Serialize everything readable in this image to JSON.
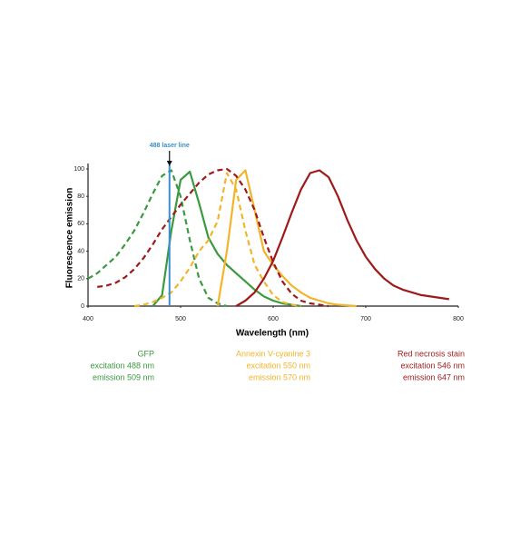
{
  "chart_data": {
    "type": "line",
    "x_label": "Wavelength (nm)",
    "y_label": "Fluorescence emission",
    "x": [
      400,
      410,
      420,
      430,
      440,
      450,
      460,
      470,
      480,
      490,
      500,
      510,
      520,
      530,
      540,
      550,
      560,
      570,
      580,
      590,
      600,
      610,
      620,
      630,
      640,
      650,
      660,
      670,
      680,
      690,
      700,
      710,
      720,
      730,
      740,
      750,
      760,
      770,
      780,
      790,
      800
    ],
    "xlim": [
      400,
      800
    ],
    "xticks": [
      400,
      500,
      600,
      700,
      800
    ],
    "ylim": [
      0,
      100
    ],
    "yticks": [
      0,
      20,
      40,
      60,
      80,
      100
    ],
    "series": [
      {
        "color": "#3a9a3f",
        "dashed": true,
        "values": [
          20,
          24,
          30,
          36,
          45,
          55,
          68,
          82,
          95,
          99,
          80,
          48,
          20,
          6,
          2,
          0,
          null,
          null,
          null,
          null,
          null,
          null,
          null,
          null,
          null,
          null,
          null,
          null,
          null,
          null,
          null,
          null,
          null,
          null,
          null,
          null,
          null,
          null,
          null,
          null,
          null
        ]
      },
      {
        "color": "#3a9a3f",
        "dashed": false,
        "values": [
          null,
          null,
          null,
          null,
          null,
          null,
          null,
          0,
          8,
          55,
          92,
          98,
          75,
          50,
          38,
          30,
          24,
          18,
          12,
          7,
          4,
          2,
          1,
          0,
          null,
          null,
          null,
          null,
          null,
          null,
          null,
          null,
          null,
          null,
          null,
          null,
          null,
          null,
          null,
          null,
          null
        ]
      },
      {
        "color": "#f2b52a",
        "dashed": true,
        "values": [
          null,
          null,
          null,
          null,
          null,
          0,
          1,
          3,
          6,
          10,
          18,
          28,
          40,
          48,
          62,
          97,
          85,
          55,
          30,
          18,
          8,
          3,
          1,
          0,
          null,
          null,
          null,
          null,
          null,
          null,
          null,
          null,
          null,
          null,
          null,
          null,
          null,
          null,
          null,
          null,
          null
        ]
      },
      {
        "color": "#f2b52a",
        "dashed": false,
        "values": [
          null,
          null,
          null,
          null,
          null,
          null,
          null,
          null,
          null,
          null,
          null,
          null,
          null,
          null,
          0,
          40,
          92,
          99,
          70,
          40,
          30,
          22,
          15,
          10,
          6,
          4,
          2,
          1,
          0.5,
          0,
          null,
          null,
          null,
          null,
          null,
          null,
          null,
          null,
          null,
          null,
          null
        ]
      },
      {
        "color": "#9e1a1a",
        "dashed": true,
        "values": [
          null,
          14,
          15,
          17,
          21,
          27,
          35,
          45,
          56,
          65,
          74,
          82,
          90,
          96,
          99,
          100,
          95,
          85,
          70,
          50,
          32,
          18,
          9,
          4,
          2,
          1,
          0,
          null,
          null,
          null,
          null,
          null,
          null,
          null,
          null,
          null,
          null,
          null,
          null,
          null,
          null
        ]
      },
      {
        "color": "#9e1a1a",
        "dashed": false,
        "values": [
          null,
          null,
          null,
          null,
          null,
          null,
          null,
          null,
          null,
          null,
          null,
          null,
          null,
          null,
          null,
          null,
          0,
          4,
          10,
          20,
          33,
          50,
          68,
          85,
          97,
          99,
          94,
          80,
          63,
          48,
          36,
          27,
          20,
          15,
          12,
          10,
          8,
          7,
          6,
          5,
          null
        ]
      }
    ],
    "annotations": [
      {
        "text": "488 laser line",
        "x": 488,
        "color": "#3a8fd0"
      }
    ],
    "legend": [
      {
        "color": "#3a9a3f",
        "lines": [
          "GFP",
          "excitation 488 nm",
          "emission 509 nm"
        ]
      },
      {
        "color": "#f2b52a",
        "lines": [
          "Annexin V-cyanine 3",
          "excitation 550 nm",
          "emission 570 nm"
        ]
      },
      {
        "color": "#9e1a1a",
        "lines": [
          "Red necrosis stain",
          "excitation 546 nm",
          "emission 647 nm"
        ]
      }
    ]
  }
}
